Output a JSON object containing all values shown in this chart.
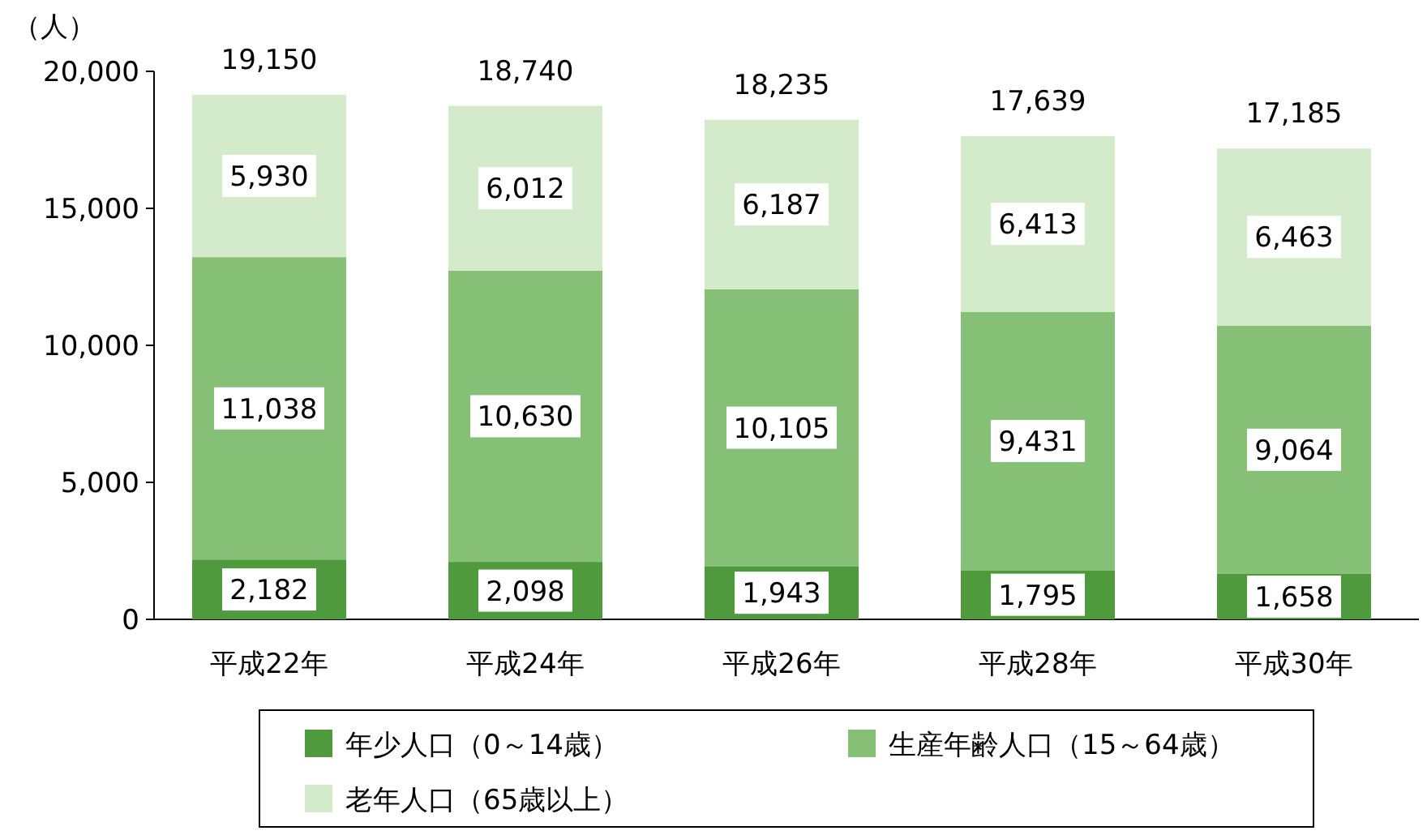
{
  "chart_data": {
    "type": "bar",
    "stacked": true,
    "ylabel": "（人）",
    "categories": [
      "平成22年",
      "平成24年",
      "平成26年",
      "平成28年",
      "平成30年"
    ],
    "series": [
      {
        "name": "年少人口（0～14歳）",
        "color": "#4e9a3c",
        "values": [
          2182,
          2098,
          1943,
          1795,
          1658
        ],
        "value_labels": [
          "2,182",
          "2,098",
          "1,943",
          "1,795",
          "1,658"
        ]
      },
      {
        "name": "生産年齢人口（15～64歳）",
        "color": "#86bf76",
        "values": [
          11038,
          10630,
          10105,
          9431,
          9064
        ],
        "value_labels": [
          "11,038",
          "10,630",
          "10,105",
          "9,431",
          "9,064"
        ]
      },
      {
        "name": "老年人口（65歳以上）",
        "color": "#d3ebcb",
        "values": [
          5930,
          6012,
          6187,
          6413,
          6463
        ],
        "value_labels": [
          "5,930",
          "6,012",
          "6,187",
          "6,413",
          "6,463"
        ]
      }
    ],
    "totals": [
      "19,150",
      "18,740",
      "18,235",
      "17,639",
      "17,185"
    ],
    "ylim": [
      0,
      20000
    ],
    "yticks": [
      {
        "value": 0,
        "label": "0"
      },
      {
        "value": 5000,
        "label": "5,000"
      },
      {
        "value": 10000,
        "label": "10,000"
      },
      {
        "value": 15000,
        "label": "15,000"
      },
      {
        "value": 20000,
        "label": "20,000"
      }
    ],
    "legend": "bottom"
  }
}
